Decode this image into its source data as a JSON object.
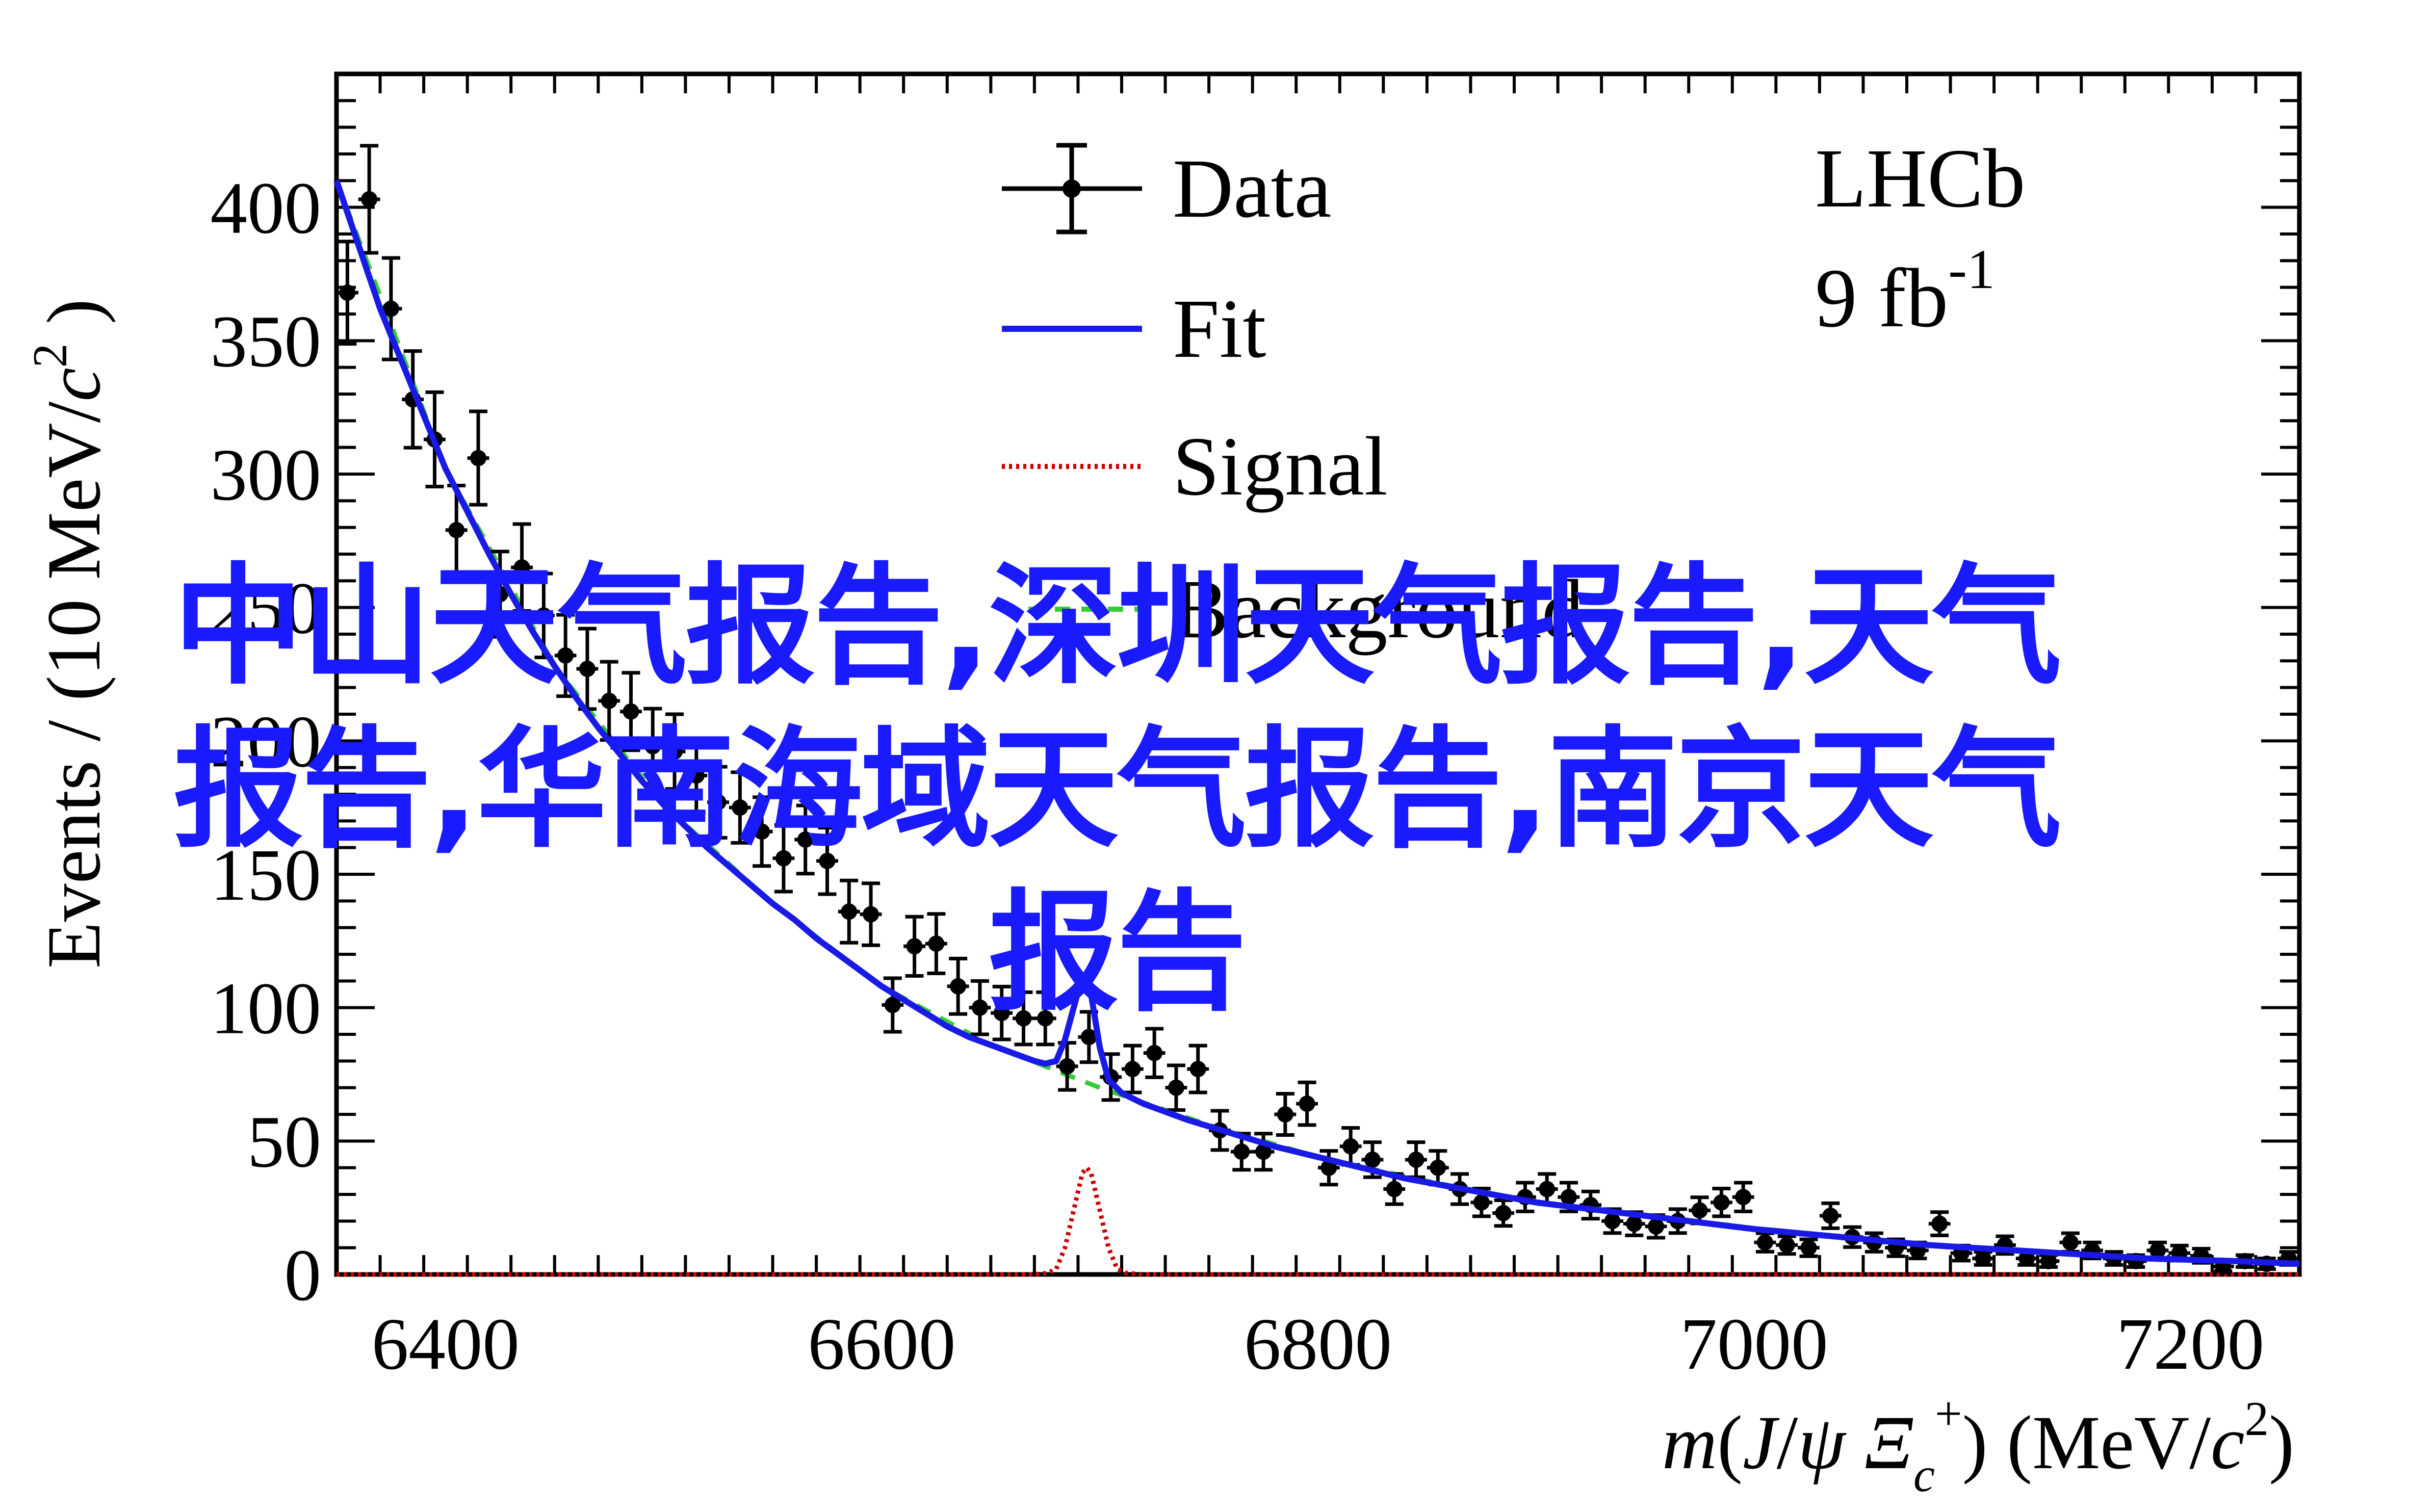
{
  "chart_data": {
    "type": "scatter",
    "xlabel": "m(J/ψ Ξc+) (MeV/c2)",
    "ylabel": "Events / (10 MeV/c2)",
    "xlim": [
      6350,
      7250
    ],
    "ylim": [
      0,
      450
    ],
    "x_ticks": [
      "6400",
      "6600",
      "6800",
      "7000",
      "7200"
    ],
    "y_ticks": [
      "0",
      "50",
      "100",
      "150",
      "200",
      "250",
      "300",
      "350",
      "400"
    ],
    "experiment": "LHCb",
    "luminosity": "9 fb",
    "luminosity_exp": "-1",
    "legend": {
      "position": "top-center",
      "entries": [
        {
          "label": "Data",
          "style": "points",
          "color": "#000000"
        },
        {
          "label": "Fit",
          "style": "solid",
          "color": "#1a1ae6"
        },
        {
          "label": "Signal",
          "style": "dotted",
          "color": "#cc0000"
        },
        {
          "label": "Background",
          "style": "dashed",
          "color": "#33cc33"
        }
      ]
    },
    "series": [
      {
        "name": "Data",
        "points": [
          [
            6355,
            368
          ],
          [
            6365,
            403
          ],
          [
            6375,
            362
          ],
          [
            6385,
            328
          ],
          [
            6395,
            313
          ],
          [
            6405,
            279
          ],
          [
            6415,
            306
          ],
          [
            6425,
            255
          ],
          [
            6435,
            265
          ],
          [
            6445,
            247
          ],
          [
            6455,
            232
          ],
          [
            6465,
            227
          ],
          [
            6475,
            215
          ],
          [
            6485,
            211
          ],
          [
            6495,
            198
          ],
          [
            6505,
            196
          ],
          [
            6515,
            187
          ],
          [
            6525,
            177
          ],
          [
            6535,
            175
          ],
          [
            6545,
            166
          ],
          [
            6555,
            156
          ],
          [
            6565,
            163
          ],
          [
            6575,
            155
          ],
          [
            6585,
            136
          ],
          [
            6595,
            135
          ],
          [
            6605,
            101
          ],
          [
            6615,
            123
          ],
          [
            6625,
            124
          ],
          [
            6635,
            108
          ],
          [
            6645,
            100
          ],
          [
            6655,
            98
          ],
          [
            6665,
            96
          ],
          [
            6675,
            96
          ],
          [
            6685,
            78
          ],
          [
            6695,
            89
          ],
          [
            6705,
            74
          ],
          [
            6715,
            77
          ],
          [
            6725,
            83
          ],
          [
            6735,
            70
          ],
          [
            6745,
            77
          ],
          [
            6755,
            54
          ],
          [
            6765,
            46
          ],
          [
            6775,
            46
          ],
          [
            6785,
            60
          ],
          [
            6795,
            64
          ],
          [
            6805,
            40
          ],
          [
            6815,
            48
          ],
          [
            6825,
            43
          ],
          [
            6835,
            32
          ],
          [
            6845,
            43
          ],
          [
            6855,
            40
          ],
          [
            6865,
            32
          ],
          [
            6875,
            27
          ],
          [
            6885,
            23
          ],
          [
            6895,
            29
          ],
          [
            6905,
            32
          ],
          [
            6915,
            29
          ],
          [
            6925,
            26
          ],
          [
            6935,
            20
          ],
          [
            6945,
            19
          ],
          [
            6955,
            18
          ],
          [
            6965,
            20
          ],
          [
            6975,
            24
          ],
          [
            6985,
            27
          ],
          [
            6995,
            29
          ],
          [
            7005,
            12
          ],
          [
            7015,
            11
          ],
          [
            7025,
            10
          ],
          [
            7035,
            22
          ],
          [
            7045,
            14
          ],
          [
            7055,
            12
          ],
          [
            7065,
            10
          ],
          [
            7075,
            9
          ],
          [
            7085,
            19
          ],
          [
            7095,
            8
          ],
          [
            7105,
            6
          ],
          [
            7115,
            11
          ],
          [
            7125,
            6
          ],
          [
            7135,
            5
          ],
          [
            7145,
            12
          ],
          [
            7155,
            9
          ],
          [
            7165,
            6
          ],
          [
            7175,
            5
          ],
          [
            7185,
            9
          ],
          [
            7195,
            8
          ],
          [
            7205,
            7
          ],
          [
            7215,
            3
          ],
          [
            7225,
            5
          ],
          [
            7235,
            4
          ],
          [
            7245,
            6
          ]
        ]
      },
      {
        "name": "Fit",
        "points": [
          [
            6350,
            410
          ],
          [
            6360,
            386
          ],
          [
            6370,
            362
          ],
          [
            6380,
            342
          ],
          [
            6390,
            322
          ],
          [
            6400,
            302
          ],
          [
            6410,
            286
          ],
          [
            6420,
            270
          ],
          [
            6430,
            255
          ],
          [
            6440,
            241
          ],
          [
            6450,
            228
          ],
          [
            6460,
            216
          ],
          [
            6470,
            205
          ],
          [
            6480,
            195
          ],
          [
            6490,
            185
          ],
          [
            6500,
            176
          ],
          [
            6510,
            168
          ],
          [
            6520,
            160
          ],
          [
            6530,
            153
          ],
          [
            6540,
            146
          ],
          [
            6550,
            139
          ],
          [
            6560,
            133
          ],
          [
            6570,
            126
          ],
          [
            6580,
            120
          ],
          [
            6590,
            114
          ],
          [
            6600,
            108
          ],
          [
            6610,
            103
          ],
          [
            6620,
            98
          ],
          [
            6630,
            93
          ],
          [
            6640,
            89
          ],
          [
            6650,
            86
          ],
          [
            6660,
            83
          ],
          [
            6670,
            80
          ],
          [
            6675,
            79
          ],
          [
            6680,
            80
          ],
          [
            6684,
            88
          ],
          [
            6688,
            100
          ],
          [
            6692,
            112
          ],
          [
            6696,
            105
          ],
          [
            6700,
            85
          ],
          [
            6704,
            73
          ],
          [
            6710,
            68
          ],
          [
            6720,
            64
          ],
          [
            6730,
            61
          ],
          [
            6740,
            58
          ],
          [
            6760,
            53
          ],
          [
            6780,
            48
          ],
          [
            6800,
            44
          ],
          [
            6820,
            40
          ],
          [
            6840,
            36
          ],
          [
            6860,
            33
          ],
          [
            6880,
            30
          ],
          [
            6900,
            27
          ],
          [
            6920,
            25
          ],
          [
            6940,
            23
          ],
          [
            6960,
            21
          ],
          [
            6980,
            19
          ],
          [
            7000,
            17
          ],
          [
            7020,
            15.5
          ],
          [
            7040,
            14
          ],
          [
            7060,
            12.5
          ],
          [
            7080,
            11
          ],
          [
            7100,
            10
          ],
          [
            7120,
            9
          ],
          [
            7140,
            8
          ],
          [
            7160,
            7
          ],
          [
            7180,
            6
          ],
          [
            7200,
            5.5
          ],
          [
            7220,
            5
          ],
          [
            7250,
            4
          ]
        ]
      },
      {
        "name": "Signal",
        "points": [
          [
            6350,
            0
          ],
          [
            6670,
            0
          ],
          [
            6676,
            0.5
          ],
          [
            6680,
            2
          ],
          [
            6684,
            10
          ],
          [
            6688,
            24
          ],
          [
            6692,
            38
          ],
          [
            6694,
            40
          ],
          [
            6696,
            38
          ],
          [
            6700,
            24
          ],
          [
            6704,
            10
          ],
          [
            6708,
            2
          ],
          [
            6712,
            0.5
          ],
          [
            6720,
            0
          ],
          [
            7250,
            0
          ]
        ]
      },
      {
        "name": "Background",
        "points": [
          [
            6350,
            410
          ],
          [
            6400,
            302
          ],
          [
            6450,
            228
          ],
          [
            6500,
            176
          ],
          [
            6550,
            139
          ],
          [
            6600,
            108
          ],
          [
            6650,
            86
          ],
          [
            6700,
            70
          ],
          [
            6750,
            56
          ],
          [
            6800,
            44
          ],
          [
            6850,
            35
          ],
          [
            6900,
            27
          ],
          [
            6950,
            22
          ],
          [
            7000,
            17
          ],
          [
            7050,
            13
          ],
          [
            7100,
            10
          ],
          [
            7150,
            7.5
          ],
          [
            7200,
            5.5
          ],
          [
            7250,
            4
          ]
        ]
      }
    ]
  },
  "overlay_text": {
    "line1": "中山天气报告,深圳天气报告,天气",
    "line2": "报告,华南海域天气报告,南京天气",
    "line3": "报告"
  }
}
